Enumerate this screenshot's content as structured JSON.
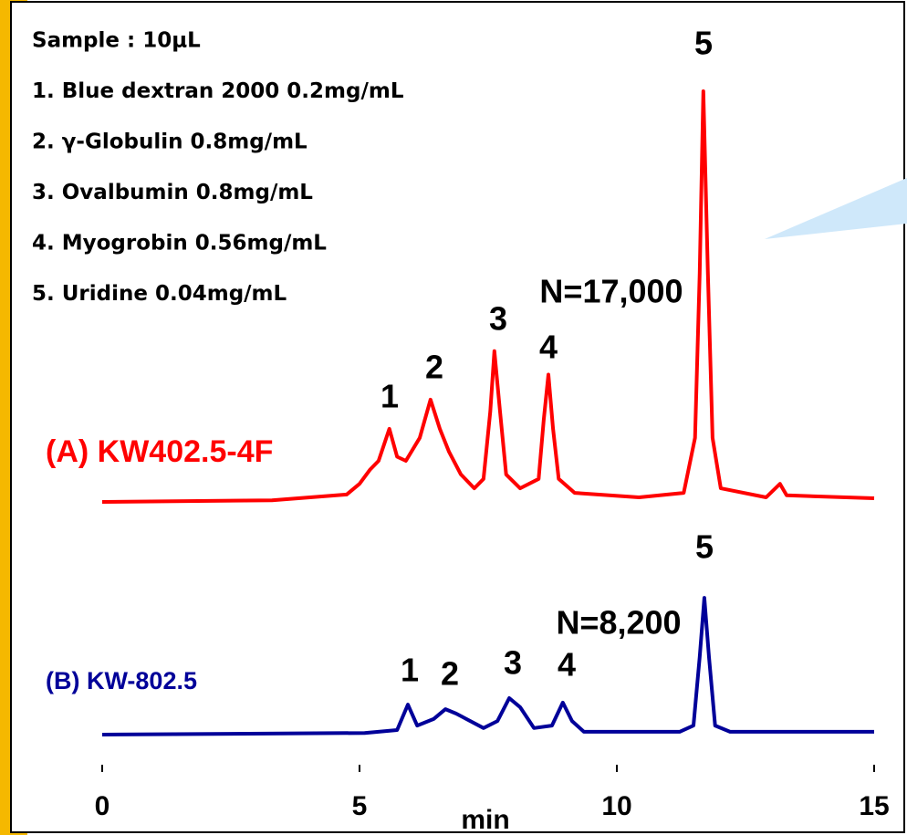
{
  "sample_text": [
    "Sample : 10μL",
    "1. Blue dextran 2000  0.2mg/mL",
    "2. γ-Globulin  0.8mg/mL",
    "3. Ovalbumin  0.8mg/mL",
    "4. Myogrobin  0.56mg/mL",
    "5. Uridine  0.04mg/mL"
  ],
  "chart_data": [
    {
      "type": "line",
      "series": [
        {
          "name": "(A)  KW402.5-4F",
          "color": "#ff0000",
          "x": [
            0,
            3.3,
            4.75,
            5.0,
            5.2,
            5.37,
            5.58,
            5.73,
            5.9,
            6.17,
            6.38,
            6.56,
            6.74,
            6.97,
            7.23,
            7.41,
            7.54,
            7.62,
            7.73,
            7.85,
            8.12,
            8.48,
            8.58,
            8.67,
            8.76,
            8.87,
            9.18,
            10.43,
            11.3,
            11.52,
            11.61,
            11.68,
            11.77,
            11.86,
            12.02,
            12.9,
            13.17,
            13.3,
            15
          ],
          "values": [
            0,
            0.4,
            1.8,
            4.4,
            7.8,
            10,
            17.8,
            11,
            10,
            15.6,
            24.9,
            17.8,
            12.2,
            6.7,
            3.3,
            5.6,
            22,
            36.7,
            22,
            6.7,
            3.3,
            5.6,
            20,
            31,
            17.8,
            5.6,
            2.2,
            1.1,
            2.2,
            15.6,
            55.6,
            100,
            55.6,
            15.6,
            3.3,
            1.1,
            4.4,
            1.6,
            0.9
          ]
        }
      ],
      "annotations": [
        "1",
        "2",
        "3",
        "4",
        "5",
        "N=17,000"
      ],
      "xlim": [
        0,
        15
      ],
      "ylim": [
        0,
        100
      ]
    },
    {
      "type": "line",
      "series": [
        {
          "name": "(B)  KW-802.5",
          "color": "#000099",
          "x": [
            0,
            5.1,
            5.73,
            5.94,
            6.12,
            6.44,
            6.67,
            6.88,
            7.41,
            7.68,
            7.91,
            8.12,
            8.39,
            8.74,
            8.95,
            9.13,
            9.36,
            11.22,
            11.49,
            11.61,
            11.7,
            11.79,
            11.91,
            12.2,
            15
          ],
          "values": [
            0,
            0.4,
            1.1,
            7.3,
            2.2,
            3.8,
            6.2,
            5.1,
            1.6,
            3.3,
            8.9,
            6.7,
            1.6,
            2.2,
            7.8,
            3.3,
            0.7,
            0.7,
            2.2,
            18.9,
            33.3,
            18.9,
            2.2,
            0.7,
            0.7
          ]
        }
      ],
      "annotations": [
        "1",
        "2",
        "3",
        "4",
        "5",
        "N=8,200"
      ],
      "xlabel": "min",
      "xlim": [
        0,
        15
      ],
      "ylim": [
        0,
        100
      ],
      "xticks": [
        0,
        5,
        10,
        15
      ]
    }
  ]
}
